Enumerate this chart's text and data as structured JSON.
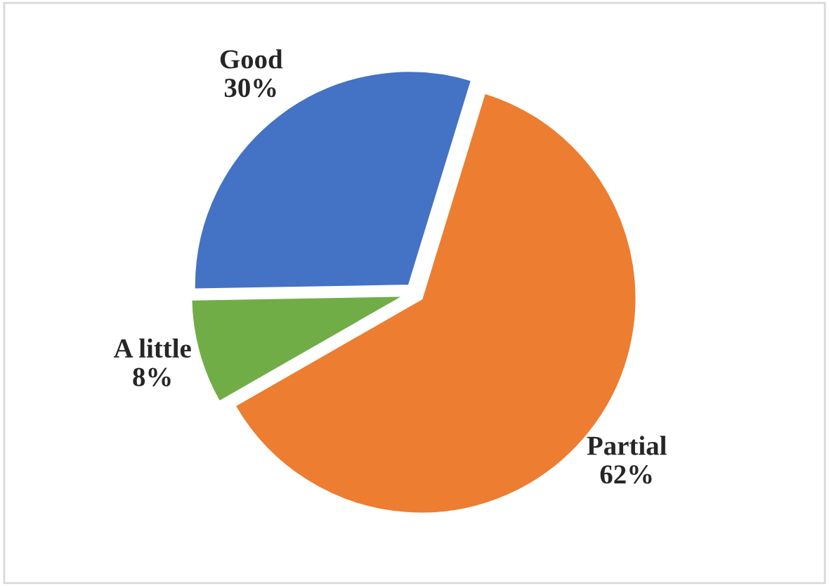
{
  "chart_data": {
    "type": "pie",
    "categories": [
      "Partial",
      "A little",
      "Good"
    ],
    "values": [
      62,
      8,
      30
    ],
    "value_labels": [
      "62%",
      "8%",
      "30%"
    ],
    "colors": [
      "#ed7d31",
      "#70ad47",
      "#4472c4"
    ],
    "legend": false
  }
}
